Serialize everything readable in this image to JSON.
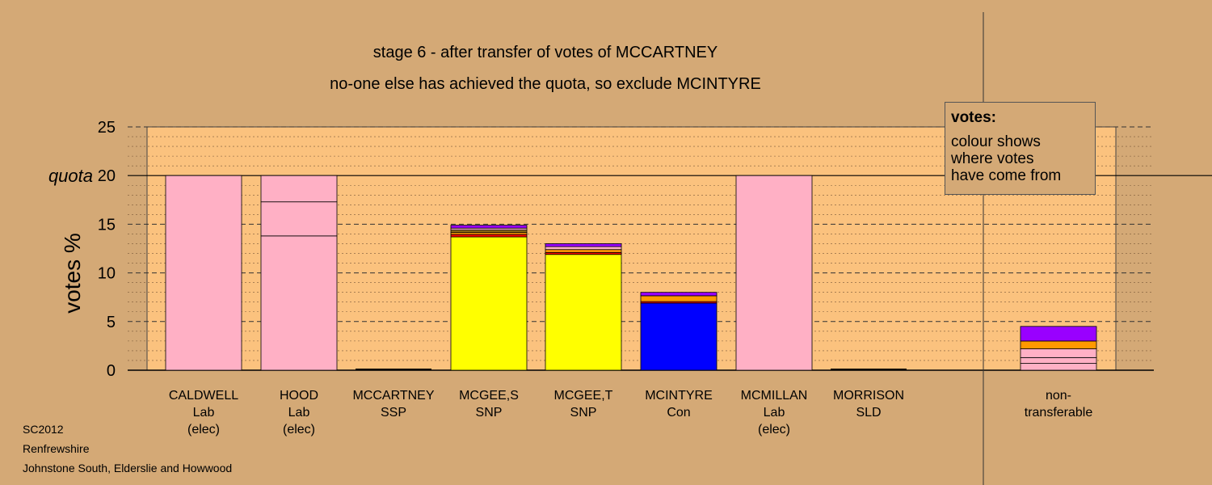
{
  "title_lines": [
    "stage 6 - after transfer of votes of MCCARTNEY",
    "no-one else has achieved the quota, so exclude MCINTYRE"
  ],
  "footer_lines": [
    "SC2012",
    "Renfrewshire",
    "Johnstone South, Elderslie and Howwood"
  ],
  "legend": {
    "title": "votes:",
    "lines": [
      "colour shows",
      "where votes",
      "have come from"
    ]
  },
  "colors": {
    "background": "#d4a976",
    "plot_area": "#fbc27e",
    "Lab": "#ffb0c5",
    "SNP": "#ffff00",
    "Con": "#0000ff",
    "SSP": "#ff0000",
    "SLD": "#ff9900",
    "other": "#9900ff"
  },
  "chart_data": {
    "type": "bar",
    "ylabel": "votes %",
    "ylim": [
      0,
      25
    ],
    "yticks": [
      0,
      5,
      10,
      15,
      20,
      25
    ],
    "quota": 20,
    "quota_label": "quota",
    "categories": [
      {
        "name": "CALDWELL",
        "party": "Lab",
        "note": "(elec)"
      },
      {
        "name": "HOOD",
        "party": "Lab",
        "note": "(elec)"
      },
      {
        "name": "MCCARTNEY",
        "party": "SSP",
        "note": ""
      },
      {
        "name": "MCGEE,S",
        "party": "SNP",
        "note": ""
      },
      {
        "name": "MCGEE,T",
        "party": "SNP",
        "note": ""
      },
      {
        "name": "MCINTYRE",
        "party": "Con",
        "note": ""
      },
      {
        "name": "MCMILLAN",
        "party": "Lab",
        "note": "(elec)"
      },
      {
        "name": "MORRISON",
        "party": "SLD",
        "note": ""
      },
      {
        "name": "non-",
        "party": "transferable",
        "note": ""
      }
    ],
    "stacks": [
      [
        {
          "color": "#ffb0c5",
          "value": 20.0
        }
      ],
      [
        {
          "color": "#ffb0c5",
          "value": 13.8
        },
        {
          "color": "#ffb0c5",
          "value": 3.5
        },
        {
          "color": "#ffb0c5",
          "value": 2.7
        }
      ],
      [],
      [
        {
          "color": "#ffff00",
          "value": 13.7
        },
        {
          "color": "#ff0000",
          "value": 0.25
        },
        {
          "color": "#ff9900",
          "value": 0.2
        },
        {
          "color": "#8b6914",
          "value": 0.25
        },
        {
          "color": "#ffb0c5",
          "value": 0.2
        },
        {
          "color": "#9900ff",
          "value": 0.3
        }
      ],
      [
        {
          "color": "#ffff00",
          "value": 11.9
        },
        {
          "color": "#ff0000",
          "value": 0.2
        },
        {
          "color": "#ff9900",
          "value": 0.3
        },
        {
          "color": "#ffb0c5",
          "value": 0.3
        },
        {
          "color": "#9900ff",
          "value": 0.3
        }
      ],
      [
        {
          "color": "#0000ff",
          "value": 6.9
        },
        {
          "color": "#ff0000",
          "value": 0.15
        },
        {
          "color": "#ff9900",
          "value": 0.6
        },
        {
          "color": "#9900ff",
          "value": 0.35
        }
      ],
      [
        {
          "color": "#ffb0c5",
          "value": 20.0
        }
      ],
      [],
      [
        {
          "color": "#ffb0c5",
          "value": 0.7
        },
        {
          "color": "#ffb0c5",
          "value": 0.6
        },
        {
          "color": "#ffb0c5",
          "value": 0.9
        },
        {
          "color": "#ff9900",
          "value": 0.8
        },
        {
          "color": "#9900ff",
          "value": 1.5
        }
      ]
    ]
  }
}
